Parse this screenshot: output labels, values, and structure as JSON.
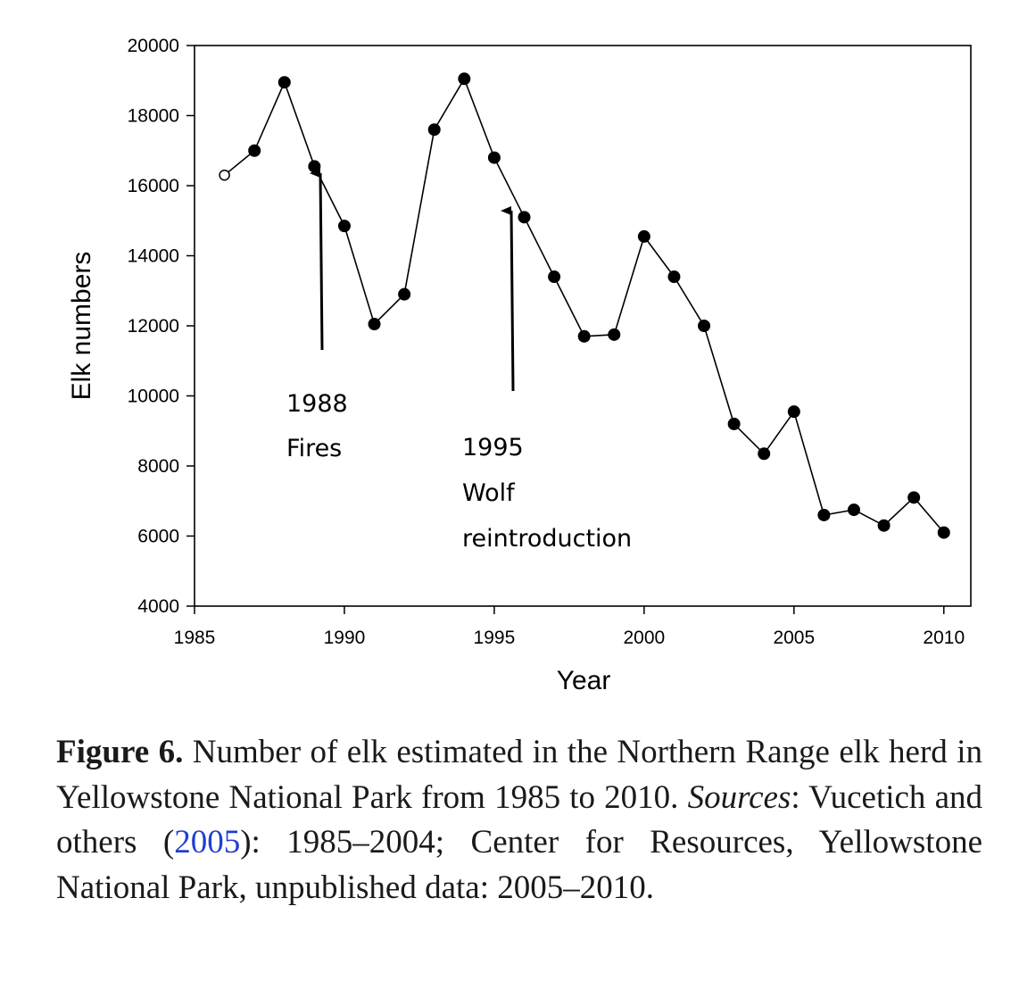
{
  "chart_data": {
    "type": "line",
    "xlabel": "Year",
    "ylabel": "Elk numbers",
    "xlim": [
      1985,
      2010.9
    ],
    "ylim": [
      4000,
      20000
    ],
    "x_ticks": [
      1985,
      1990,
      1995,
      2000,
      2005,
      2010
    ],
    "y_ticks": [
      4000,
      6000,
      8000,
      10000,
      12000,
      14000,
      16000,
      18000,
      20000
    ],
    "grid": false,
    "series": [
      {
        "marker_style": "open circle for 1986, filled circles for 1987–2010",
        "x": [
          1986,
          1987,
          1988,
          1989,
          1990,
          1991,
          1992,
          1993,
          1994,
          1995,
          1996,
          1997,
          1998,
          1999,
          2000,
          2001,
          2002,
          2003,
          2004,
          2005,
          2006,
          2007,
          2008,
          2009,
          2010
        ],
        "y": [
          16300,
          17000,
          18950,
          16550,
          14850,
          12050,
          12900,
          17600,
          19050,
          16800,
          15100,
          13400,
          11700,
          11750,
          14550,
          13400,
          12000,
          9200,
          8350,
          9550,
          6600,
          6750,
          6300,
          7100,
          6100
        ],
        "open_points": [
          1986
        ]
      }
    ],
    "annotations": [
      {
        "lines": [
          "1988",
          "Fires"
        ],
        "arrow_x": 1988
      },
      {
        "lines": [
          "1995",
          "Wolf",
          "reintroduction"
        ],
        "arrow_x": 1995
      }
    ]
  },
  "caption": {
    "label": "Figure 6.",
    "text_1": " Number of elk estimated in the Northern Range elk herd in Yellowstone National Park from 1985 to 2010. ",
    "sources_word": "Sources",
    "text_2": ": Vucetich and others (",
    "cite_year": "2005",
    "text_3": "): 1985–2004; Center for Resources, Yellowstone National Park, unpublished data: 2005–2010.",
    "link_color": "#1f3fd0"
  }
}
